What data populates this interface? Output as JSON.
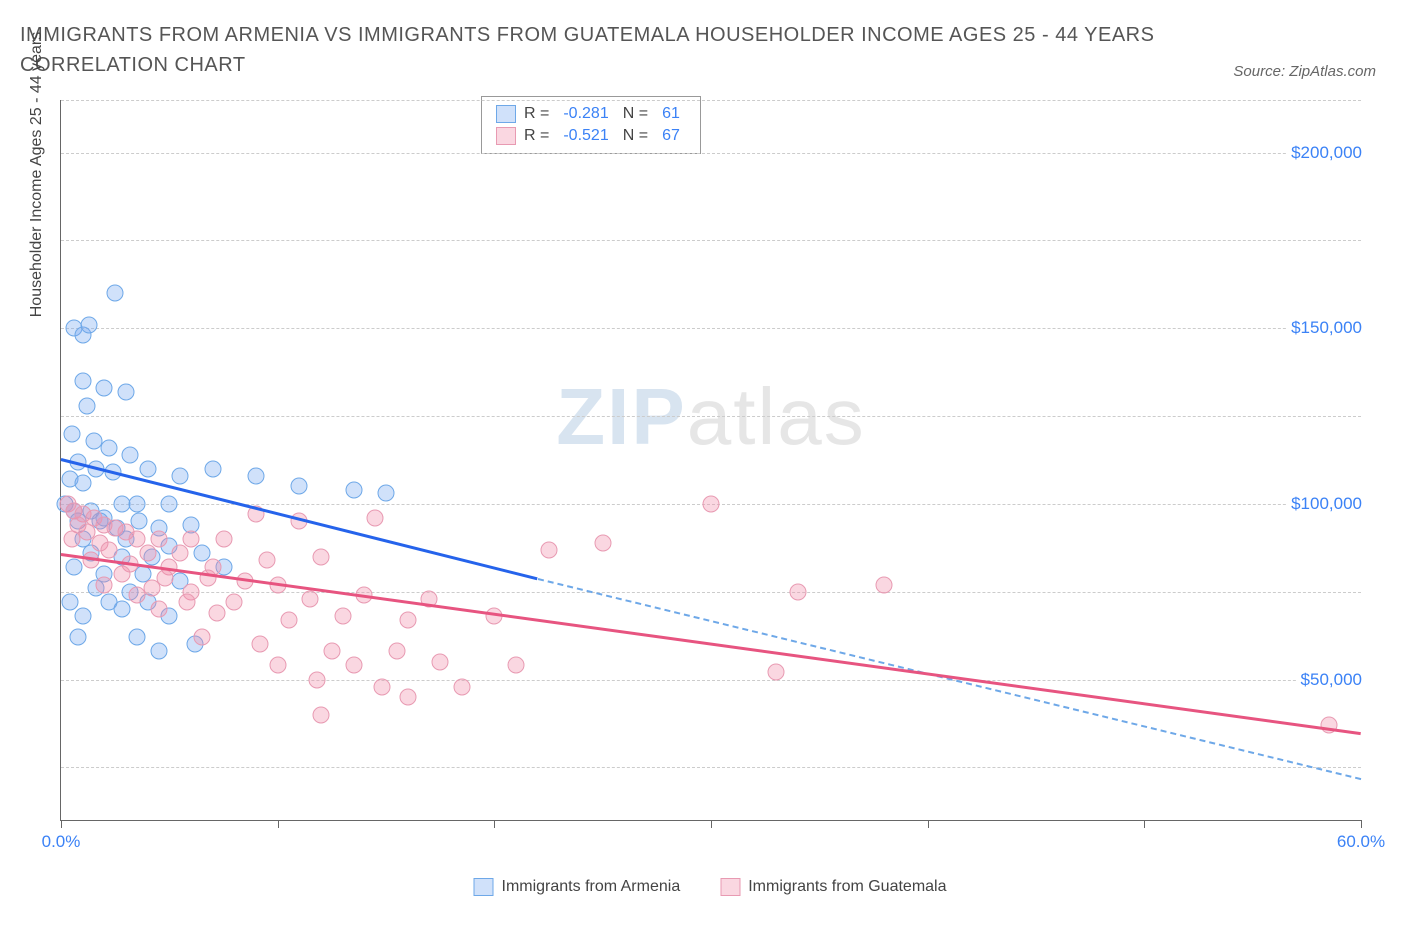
{
  "header": {
    "title": "IMMIGRANTS FROM ARMENIA VS IMMIGRANTS FROM GUATEMALA HOUSEHOLDER INCOME AGES 25 - 44 YEARS CORRELATION CHART",
    "source_prefix": "Source: ",
    "source": "ZipAtlas.com"
  },
  "watermark": {
    "zip": "ZIP",
    "atlas": "atlas"
  },
  "chart": {
    "type": "scatter",
    "background_color": "#ffffff",
    "grid_color": "#cccccc",
    "axis_color": "#666666",
    "yaxis_title": "Householder Income Ages 25 - 44 years",
    "xlim": [
      0,
      60
    ],
    "ylim": [
      10000,
      215000
    ],
    "xticks": [
      0,
      10,
      20,
      30,
      40,
      50,
      60
    ],
    "xlabels": [
      {
        "v": 0,
        "t": "0.0%"
      },
      {
        "v": 60,
        "t": "60.0%"
      }
    ],
    "yticks": [
      {
        "v": 50000,
        "t": "$50,000"
      },
      {
        "v": 100000,
        "t": "$100,000"
      },
      {
        "v": 150000,
        "t": "$150,000"
      },
      {
        "v": 200000,
        "t": "$200,000"
      }
    ],
    "ytick_minor": [
      25000,
      75000,
      125000,
      175000
    ],
    "marker_size": 17,
    "series": [
      {
        "name": "Immigrants from Armenia",
        "color_fill": "rgba(120,170,240,0.35)",
        "color_stroke": "#6ea8e8",
        "trend_color": "#2563eb",
        "r": -0.281,
        "n": 61,
        "trend": {
          "x1": 0,
          "y1": 113000,
          "x2_solid": 22,
          "y2_solid": 79000,
          "x2": 60,
          "y2": 22000
        },
        "points": [
          [
            0.6,
            150000
          ],
          [
            1.0,
            148000
          ],
          [
            1.3,
            151000
          ],
          [
            2.5,
            160000
          ],
          [
            1.0,
            135000
          ],
          [
            2.0,
            133000
          ],
          [
            3.0,
            132000
          ],
          [
            1.2,
            128000
          ],
          [
            0.5,
            120000
          ],
          [
            1.5,
            118000
          ],
          [
            2.2,
            116000
          ],
          [
            3.2,
            114000
          ],
          [
            0.8,
            112000
          ],
          [
            1.6,
            110000
          ],
          [
            2.4,
            109000
          ],
          [
            4.0,
            110000
          ],
          [
            5.5,
            108000
          ],
          [
            0.4,
            107000
          ],
          [
            1.0,
            106000
          ],
          [
            2.8,
            100000
          ],
          [
            3.5,
            100000
          ],
          [
            5.0,
            100000
          ],
          [
            7.0,
            110000
          ],
          [
            9.0,
            108000
          ],
          [
            11.0,
            105000
          ],
          [
            13.5,
            104000
          ],
          [
            15.0,
            103000
          ],
          [
            0.2,
            100000
          ],
          [
            0.6,
            98000
          ],
          [
            1.4,
            98000
          ],
          [
            2.0,
            96000
          ],
          [
            0.8,
            95000
          ],
          [
            1.8,
            95000
          ],
          [
            3.6,
            95000
          ],
          [
            2.6,
            93000
          ],
          [
            4.5,
            93000
          ],
          [
            6.0,
            94000
          ],
          [
            1.0,
            90000
          ],
          [
            3.0,
            90000
          ],
          [
            5.0,
            88000
          ],
          [
            1.4,
            86000
          ],
          [
            2.8,
            85000
          ],
          [
            4.2,
            85000
          ],
          [
            6.5,
            86000
          ],
          [
            0.6,
            82000
          ],
          [
            2.0,
            80000
          ],
          [
            3.8,
            80000
          ],
          [
            5.5,
            78000
          ],
          [
            7.5,
            82000
          ],
          [
            1.6,
            76000
          ],
          [
            3.2,
            75000
          ],
          [
            0.4,
            72000
          ],
          [
            2.2,
            72000
          ],
          [
            4.0,
            72000
          ],
          [
            1.0,
            68000
          ],
          [
            2.8,
            70000
          ],
          [
            5.0,
            68000
          ],
          [
            0.8,
            62000
          ],
          [
            3.5,
            62000
          ],
          [
            6.2,
            60000
          ],
          [
            4.5,
            58000
          ]
        ]
      },
      {
        "name": "Immigrants from Guatemala",
        "color_fill": "rgba(240,140,170,0.35)",
        "color_stroke": "#e89ab2",
        "trend_color": "#e75480",
        "r": -0.521,
        "n": 67,
        "trend": {
          "x1": 0,
          "y1": 86000,
          "x2_solid": 60,
          "y2_solid": 35000,
          "x2": 60,
          "y2": 35000
        },
        "points": [
          [
            0.3,
            100000
          ],
          [
            0.6,
            98000
          ],
          [
            1.0,
            97000
          ],
          [
            1.5,
            96000
          ],
          [
            0.8,
            94000
          ],
          [
            2.0,
            94000
          ],
          [
            1.2,
            92000
          ],
          [
            2.5,
            93000
          ],
          [
            3.0,
            92000
          ],
          [
            0.5,
            90000
          ],
          [
            1.8,
            89000
          ],
          [
            3.5,
            90000
          ],
          [
            4.5,
            90000
          ],
          [
            6.0,
            90000
          ],
          [
            2.2,
            87000
          ],
          [
            4.0,
            86000
          ],
          [
            5.5,
            86000
          ],
          [
            7.5,
            90000
          ],
          [
            9.0,
            97000
          ],
          [
            11.0,
            95000
          ],
          [
            1.4,
            84000
          ],
          [
            3.2,
            83000
          ],
          [
            5.0,
            82000
          ],
          [
            7.0,
            82000
          ],
          [
            9.5,
            84000
          ],
          [
            12.0,
            85000
          ],
          [
            14.5,
            96000
          ],
          [
            2.8,
            80000
          ],
          [
            4.8,
            79000
          ],
          [
            6.8,
            79000
          ],
          [
            8.5,
            78000
          ],
          [
            2.0,
            77000
          ],
          [
            4.2,
            76000
          ],
          [
            6.0,
            75000
          ],
          [
            10.0,
            77000
          ],
          [
            3.5,
            74000
          ],
          [
            5.8,
            72000
          ],
          [
            8.0,
            72000
          ],
          [
            11.5,
            73000
          ],
          [
            14.0,
            74000
          ],
          [
            17.0,
            73000
          ],
          [
            4.5,
            70000
          ],
          [
            7.2,
            69000
          ],
          [
            10.5,
            67000
          ],
          [
            13.0,
            68000
          ],
          [
            16.0,
            67000
          ],
          [
            20.0,
            68000
          ],
          [
            22.5,
            87000
          ],
          [
            25.0,
            89000
          ],
          [
            30.0,
            100000
          ],
          [
            34.0,
            75000
          ],
          [
            38.0,
            77000
          ],
          [
            6.5,
            62000
          ],
          [
            9.2,
            60000
          ],
          [
            12.5,
            58000
          ],
          [
            15.5,
            58000
          ],
          [
            10.0,
            54000
          ],
          [
            13.5,
            54000
          ],
          [
            17.5,
            55000
          ],
          [
            21.0,
            54000
          ],
          [
            11.8,
            50000
          ],
          [
            14.8,
            48000
          ],
          [
            18.5,
            48000
          ],
          [
            16.0,
            45000
          ],
          [
            33.0,
            52000
          ],
          [
            12.0,
            40000
          ],
          [
            58.5,
            37000
          ]
        ]
      }
    ],
    "stat_box": {
      "labels": {
        "R": "R =",
        "N": "N ="
      }
    },
    "legend_labels": [
      "Immigrants from Armenia",
      "Immigrants from Guatemala"
    ]
  }
}
